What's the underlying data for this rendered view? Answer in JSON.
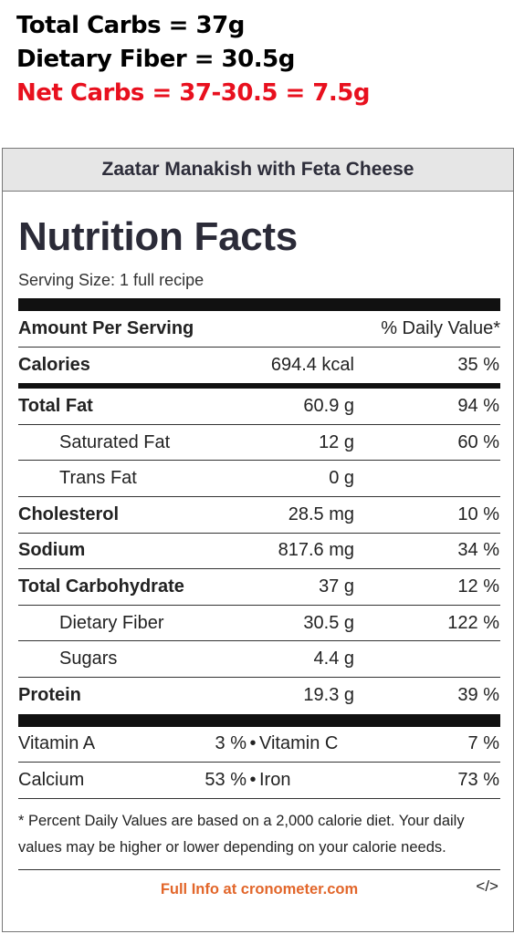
{
  "annotation": {
    "total_carbs": "Total Carbs = 37g",
    "dietary_fiber": "Dietary Fiber = 30.5g",
    "net_carbs": "Net Carbs = 37-30.5 = 7.5g",
    "net_carbs_color": "#e8101e"
  },
  "label": {
    "recipe_title": "Zaatar Manakish with Feta Cheese",
    "heading": "Nutrition Facts",
    "serving_size": "Serving Size: 1 full recipe",
    "amount_per_serving": "Amount Per Serving",
    "daily_value_header": "% Daily Value*",
    "rows": [
      {
        "name": "Calories",
        "amount": "694.4 kcal",
        "dv": "35 %"
      },
      {
        "name": "Total Fat",
        "amount": "60.9 g",
        "dv": "94 %"
      },
      {
        "name": "Saturated Fat",
        "amount": "12 g",
        "dv": "60 %"
      },
      {
        "name": "Trans Fat",
        "amount": "0 g",
        "dv": ""
      },
      {
        "name": "Cholesterol",
        "amount": "28.5 mg",
        "dv": "10 %"
      },
      {
        "name": "Sodium",
        "amount": "817.6 mg",
        "dv": "34 %"
      },
      {
        "name": "Total Carbohydrate",
        "amount": "37 g",
        "dv": "12 %"
      },
      {
        "name": "Dietary Fiber",
        "amount": "30.5 g",
        "dv": "122 %"
      },
      {
        "name": "Sugars",
        "amount": "4.4 g",
        "dv": ""
      },
      {
        "name": "Protein",
        "amount": "19.3 g",
        "dv": "39 %"
      }
    ],
    "vitamins": [
      {
        "name1": "Vitamin A",
        "pct1": "3 %",
        "sep": "•",
        "name2": "Vitamin C",
        "pct2": "7 %"
      },
      {
        "name1": "Calcium",
        "pct1": "53 %",
        "sep": "•",
        "name2": "Iron",
        "pct2": "73 %"
      }
    ],
    "footnote": "* Percent Daily Values are based on a 2,000 calorie diet. Your daily values may be higher or lower depending on your calorie needs.",
    "footer_link": "Full Info at cronometer.com",
    "embed_icon": "</>",
    "link_color": "#e2662a"
  }
}
